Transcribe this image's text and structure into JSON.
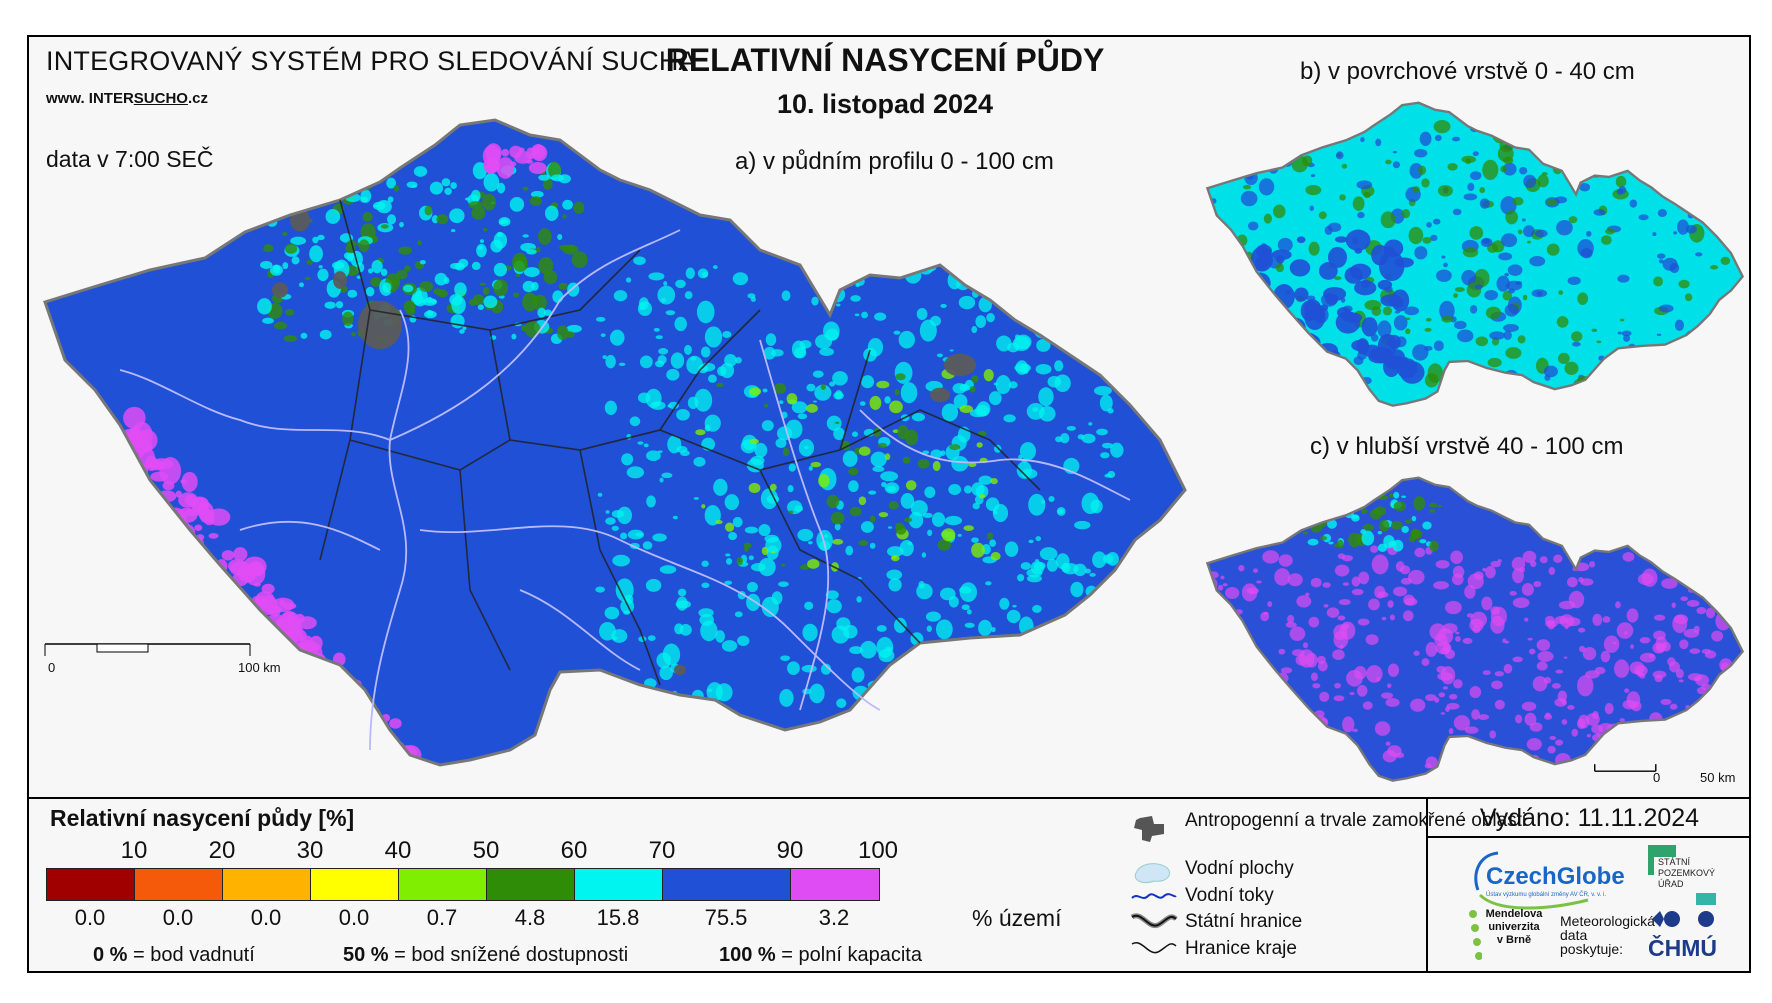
{
  "header": {
    "system_title": "INTEGROVANÝ SYSTÉM PRO SLEDOVÁNÍ SUCHA",
    "website_prefix": "www. INTER",
    "website_underlined": "SUCHO",
    "website_suffix": ".cz",
    "data_time": "data v 7:00 SEČ",
    "title": "RELATIVNÍ NASYCENÍ PŮDY",
    "date": "10. listopad 2024"
  },
  "maps": {
    "a_label": "a) v půdním profilu 0 - 100 cm",
    "b_label": "b) v povrchové vrstvě 0 - 40 cm",
    "c_label": "c) v hlubší vrstvě 40 - 100 cm",
    "scale_a": {
      "start": "0",
      "end": "100 km"
    },
    "scale_small": {
      "start": "0",
      "end": "50 km"
    }
  },
  "legend": {
    "title": "Relativní nasycení půdy [%]",
    "thresholds": [
      "10",
      "20",
      "30",
      "40",
      "50",
      "60",
      "70",
      "90",
      "100"
    ],
    "classes": [
      {
        "color": "#a00000",
        "share": "0.0"
      },
      {
        "color": "#f55a0a",
        "share": "0.0"
      },
      {
        "color": "#ffb300",
        "share": "0.0"
      },
      {
        "color": "#ffff00",
        "share": "0.0"
      },
      {
        "color": "#7fee00",
        "share": "0.7"
      },
      {
        "color": "#2f8c06",
        "share": "4.8"
      },
      {
        "color": "#00f5f0",
        "share": "15.8"
      },
      {
        "color": "#1f50d6",
        "share": "75.5"
      },
      {
        "color": "#e04cf4",
        "share": "3.2"
      }
    ],
    "share_unit": "% území",
    "notes": [
      {
        "value": "0 %",
        "text": "= bod vadnutí"
      },
      {
        "value": "50 %",
        "text": "= bod snížené dostupnosti"
      },
      {
        "value": "100 %",
        "text": "= polní kapacita"
      }
    ]
  },
  "symbols": {
    "anthropogenic": "Antropogenní a trvale zamokřené oblasti",
    "water_bodies": "Vodní plochy",
    "rivers": "Vodní toky",
    "state_border": "Státní hranice",
    "region_border": "Hranice kraje"
  },
  "footer": {
    "issued": "Vydáno: 11.11.2024",
    "czechglobe": "CzechGlobe",
    "czechglobe_sub": "Ústav výzkumu globální změny AV ČR, v. v. i.",
    "spu": "STÁTNÍ POZEMKOVÝ ÚŘAD",
    "mendel": "Mendelova univerzita v Brně",
    "meteo": "Meteorologická data poskytuje:",
    "chmu": "ČHMÚ"
  },
  "colors": {
    "blue": "#1f50d6",
    "cyan": "#00f5f0",
    "green": "#2f8c06",
    "lightgreen": "#7fee00",
    "magenta": "#e04cf4",
    "urban": "#5b5b5b",
    "river": "#b9b9ff"
  }
}
